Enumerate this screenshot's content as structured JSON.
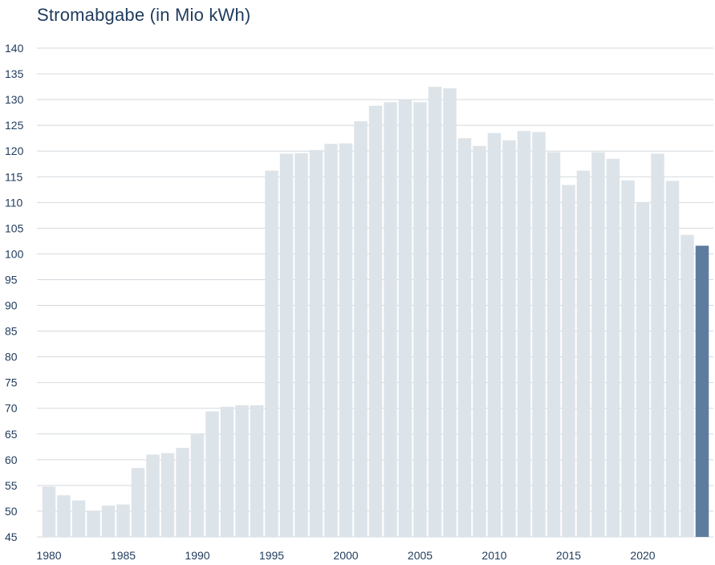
{
  "chart_data": {
    "type": "bar",
    "title": "Stromabgabe (in Mio kWh)",
    "xlabel": "",
    "ylabel": "",
    "ylim": [
      45,
      140
    ],
    "yticks": [
      45,
      50,
      55,
      60,
      65,
      70,
      75,
      80,
      85,
      90,
      95,
      100,
      105,
      110,
      115,
      120,
      125,
      130,
      135,
      140
    ],
    "xtick_labels": [
      "1980",
      "1985",
      "1990",
      "1995",
      "2000",
      "2005",
      "2010",
      "2015",
      "2020"
    ],
    "grid": true,
    "categories": [
      "1980",
      "1981",
      "1982",
      "1983",
      "1984",
      "1985",
      "1986",
      "1987",
      "1988",
      "1989",
      "1990",
      "1991",
      "1992",
      "1993",
      "1994",
      "1995",
      "1996",
      "1997",
      "1998",
      "1999",
      "2000",
      "2001",
      "2002",
      "2003",
      "2004",
      "2005",
      "2006",
      "2007",
      "2008",
      "2009",
      "2010",
      "2011",
      "2012",
      "2013",
      "2014",
      "2015",
      "2016",
      "2017",
      "2018",
      "2019",
      "2020",
      "2021",
      "2022",
      "2023",
      "2024"
    ],
    "values": [
      54.8,
      53.1,
      52.1,
      49.9,
      51.1,
      51.3,
      58.4,
      61.0,
      61.3,
      62.3,
      65.1,
      69.4,
      70.3,
      70.6,
      70.6,
      116.2,
      119.5,
      119.6,
      120.2,
      121.4,
      121.5,
      125.8,
      128.8,
      129.5,
      130.0,
      129.5,
      132.5,
      132.2,
      122.5,
      121.0,
      123.5,
      122.1,
      123.9,
      123.7,
      119.8,
      113.4,
      116.2,
      119.8,
      118.5,
      114.3,
      110.0,
      119.5,
      114.2,
      103.7,
      101.6
    ],
    "colors": {
      "bar": "#dde4e9",
      "highlight": "#5d7d9e",
      "grid": "#d4d9de",
      "text": "#1f3b5c"
    },
    "highlight_index": 44
  }
}
